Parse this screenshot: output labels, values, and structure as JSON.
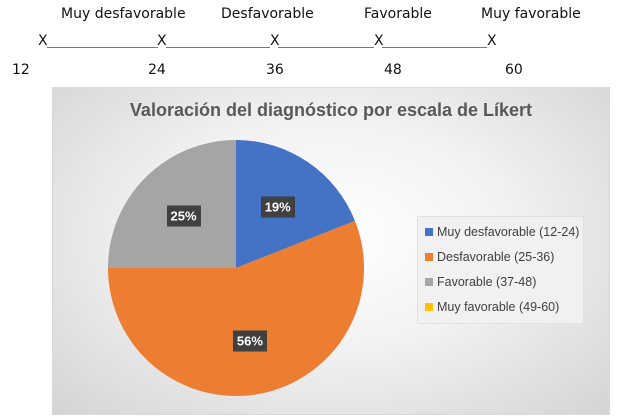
{
  "scale": {
    "categories": [
      "Muy desfavorable",
      "Desfavorable",
      "Favorable",
      "Muy favorable"
    ],
    "marker": "X",
    "ticks": [
      "12",
      "24",
      "36",
      "48",
      "60"
    ]
  },
  "chart_data": {
    "type": "pie",
    "title": "Valoración del diagnóstico por escala de Líkert",
    "categories": [
      "Muy desfavorable (12-24)",
      "Desfavorable (25-36)",
      "Favorable (37-48)",
      "Muy favorable (49-60)"
    ],
    "values": [
      19,
      56,
      25,
      0
    ],
    "data_labels": [
      "19%",
      "56%",
      "25%",
      ""
    ],
    "colors": [
      "#4472C4",
      "#ED7D31",
      "#A5A5A5",
      "#FFC000"
    ],
    "legend_position": "right"
  }
}
